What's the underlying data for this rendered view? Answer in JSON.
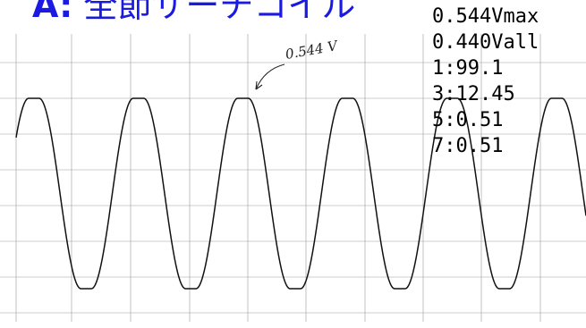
{
  "title": {
    "prefix": "A:",
    "text": "全節サーチコイル"
  },
  "readouts": [
    "0.544Vmax",
    "0.440Vall",
    "1:99.1",
    "3:12.45",
    "5:0.51",
    "7:0.51"
  ],
  "annotation": {
    "text": "0.544 V"
  },
  "colors": {
    "title": "#1a1ae0",
    "trace": "#111111",
    "grid": "#9a9a9a",
    "paper": "#ffffff"
  },
  "chart_data": {
    "type": "line",
    "title": "",
    "xlabel": "",
    "ylabel": "",
    "ylim": [
      -0.544,
      0.544
    ],
    "xlim": [
      0,
      5.45
    ],
    "grid": true,
    "series": [
      {
        "waveform": "flat-topped periodic",
        "period": 1,
        "peak": 0.544,
        "trough": -0.544,
        "flat_top_fraction": 0.1,
        "phase_offset": 0.12
      }
    ]
  }
}
